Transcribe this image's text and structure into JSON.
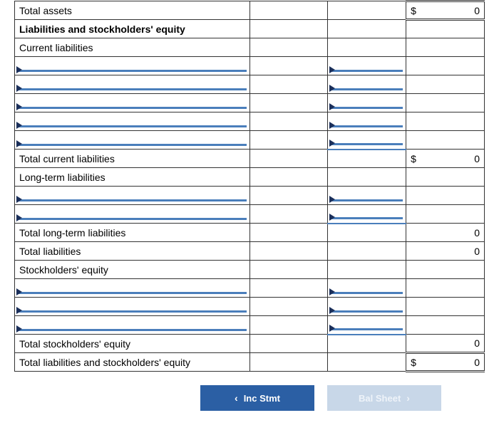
{
  "rows": {
    "total_assets": "Total assets",
    "liab_equity_header": "Liabilities and stockholders' equity",
    "current_liabilities": "Current liabilities",
    "total_current_liabilities": "Total current liabilities",
    "long_term_liabilities": "Long-term liabilities",
    "total_long_term_liabilities": "Total long-term liabilities",
    "total_liabilities": "Total liabilities",
    "stockholders_equity": "Stockholders' equity",
    "total_stockholders_equity": "Total stockholders' equity",
    "total_liab_and_equity": "Total liabilities and stockholders' equity"
  },
  "values": {
    "total_assets_sym": "$",
    "total_assets_val": "0",
    "tcl_sym": "$",
    "tcl_val": "0",
    "tltl_val": "0",
    "tl_val": "0",
    "tse_val": "0",
    "tle_sym": "$",
    "tle_val": "0"
  },
  "nav": {
    "prev": "Inc Stmt",
    "next": "Bal Sheet"
  },
  "counts": {
    "current_liab_inputs": 5,
    "long_term_inputs": 2,
    "equity_inputs": 3
  },
  "colors": {
    "input_underline": "#4a7ebb",
    "input_triangle": "#1b2f5a",
    "nav_active": "#2b5fa4",
    "nav_inactive": "#c8d7e8"
  }
}
